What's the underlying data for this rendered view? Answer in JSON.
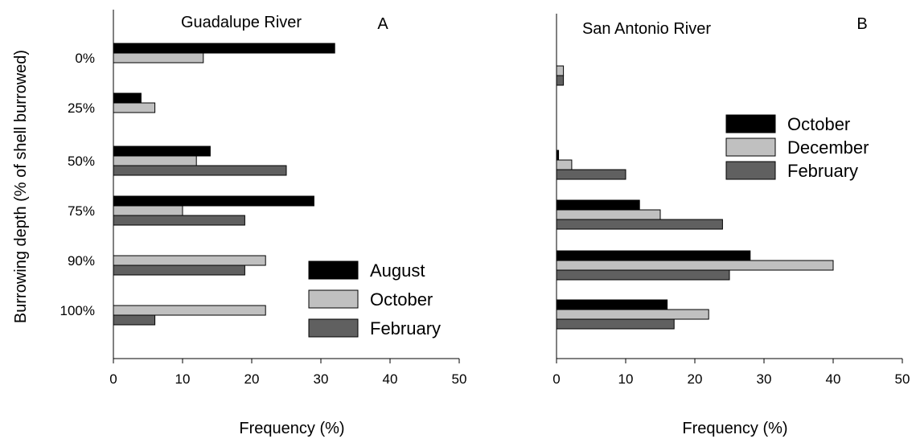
{
  "colors": {
    "black": "#000000",
    "light_gray": "#c0c0c0",
    "dark_gray": "#606060"
  },
  "y_axis_label": "Burrowing depth (% of shell burrowed)",
  "chart_data": [
    {
      "type": "bar",
      "orientation": "horizontal",
      "panel_letter": "A",
      "title": "Guadalupe River",
      "xlabel": "Frequency (%)",
      "ylabel": "Burrowing depth (% of shell burrowed)",
      "categories": [
        "0%",
        "25%",
        "50%",
        "75%",
        "90%",
        "100%"
      ],
      "xlim": [
        0,
        50
      ],
      "xticks": [
        0,
        10,
        20,
        30,
        40,
        50
      ],
      "legend_position": "lower-right",
      "series": [
        {
          "name": "August",
          "color": "#000000",
          "values": [
            32,
            4,
            14,
            29,
            0,
            0
          ]
        },
        {
          "name": "October",
          "color": "#c0c0c0",
          "values": [
            13,
            6,
            12,
            10,
            22,
            22
          ]
        },
        {
          "name": "February",
          "color": "#606060",
          "values": [
            0,
            0,
            25,
            19,
            19,
            6
          ]
        }
      ]
    },
    {
      "type": "bar",
      "orientation": "horizontal",
      "panel_letter": "B",
      "title": "San Antonio River",
      "xlabel": "Frequency (%)",
      "ylabel": "",
      "categories": [
        "0%",
        "25%",
        "50%",
        "75%",
        "90%",
        "100%"
      ],
      "xlim": [
        0,
        50
      ],
      "xticks": [
        0,
        10,
        20,
        30,
        40,
        50
      ],
      "legend_position": "upper-right",
      "series": [
        {
          "name": "October",
          "color": "#000000",
          "values": [
            0,
            0,
            0.3,
            12,
            28,
            16
          ]
        },
        {
          "name": "December",
          "color": "#c0c0c0",
          "values": [
            1,
            0,
            2.2,
            15,
            40,
            22
          ]
        },
        {
          "name": "February",
          "color": "#606060",
          "values": [
            1,
            0,
            10,
            24,
            25,
            17
          ]
        }
      ]
    }
  ]
}
